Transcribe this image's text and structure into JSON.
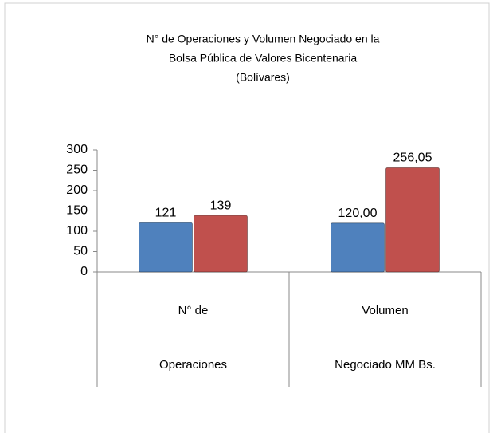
{
  "chart_data": {
    "type": "bar",
    "title": [
      "N° de Operaciones y Volumen Negociado en la",
      "Bolsa Pública de Valores Bicentenaria",
      "(Bolívares)"
    ],
    "categories": [
      [
        "N° de",
        "Operaciones"
      ],
      [
        "Volumen",
        "Negociado MM Bs."
      ]
    ],
    "series": [
      {
        "color": "#4f81bd",
        "values": [
          121,
          120
        ],
        "value_labels": [
          "121",
          "120,00"
        ]
      },
      {
        "color": "#c0504d",
        "values": [
          139,
          256.05
        ],
        "value_labels": [
          "139",
          "256,05"
        ]
      }
    ],
    "ylim": [
      0,
      300
    ],
    "yticks": [
      0,
      50,
      100,
      150,
      200,
      250,
      300
    ],
    "grid": false
  }
}
